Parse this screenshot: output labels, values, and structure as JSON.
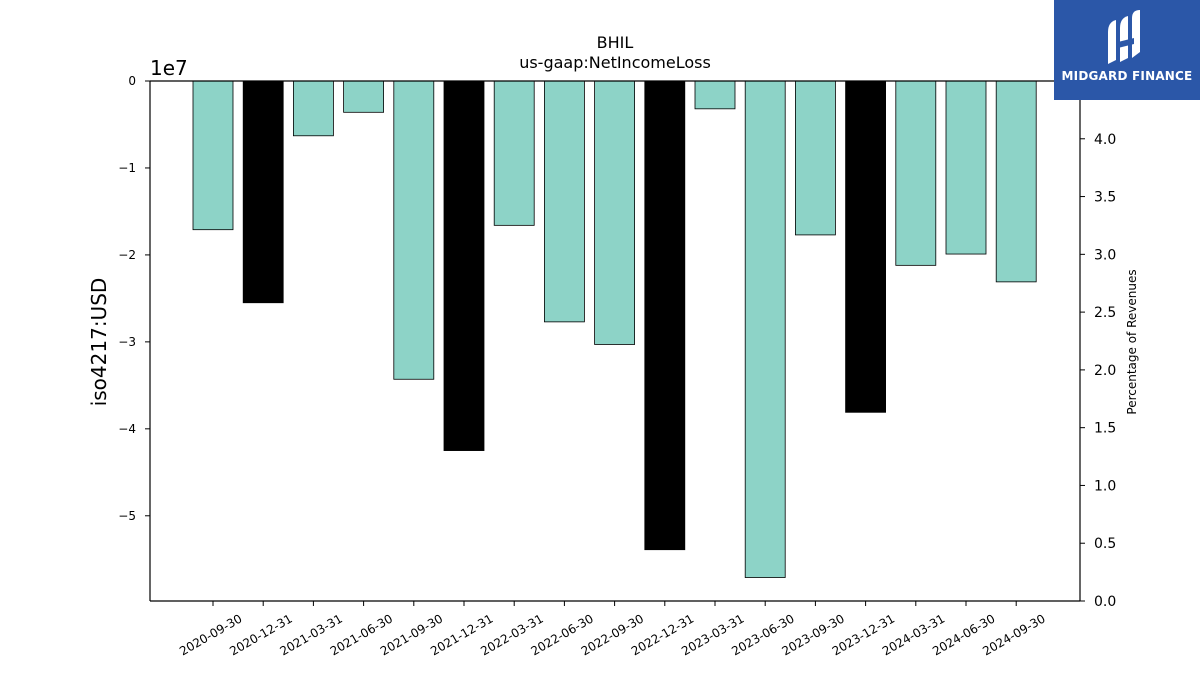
{
  "chart_data": {
    "type": "bar",
    "title": "BHIL",
    "subtitle": "us-gaap:NetIncomeLoss",
    "ylabel": "iso4217:USD",
    "y_offset_text": "1e7",
    "y2label": "Percentage of Revenues",
    "ylim": [
      -59800000,
      0
    ],
    "y2lim": [
      0.0,
      4.5
    ],
    "y_ticks": [
      0,
      -10000000,
      -20000000,
      -30000000,
      -40000000,
      -50000000
    ],
    "y_tick_labels": [
      "0",
      "−1",
      "−2",
      "−3",
      "−4",
      "−5"
    ],
    "y2_ticks": [
      0.0,
      0.5,
      1.0,
      1.5,
      2.0,
      2.5,
      3.0,
      3.5,
      4.0
    ],
    "y2_tick_labels": [
      "0.0",
      "0.5",
      "1.0",
      "1.5",
      "2.0",
      "2.5",
      "3.0",
      "3.5",
      "4.0"
    ],
    "categories": [
      "2020-09-30",
      "2020-12-31",
      "2021-03-31",
      "2021-06-30",
      "2021-09-30",
      "2021-12-31",
      "2022-03-31",
      "2022-06-30",
      "2022-09-30",
      "2022-12-31",
      "2023-03-31",
      "2023-06-30",
      "2023-09-30",
      "2023-12-31",
      "2024-03-31",
      "2024-06-30",
      "2024-09-30"
    ],
    "values": [
      -17100000,
      -25500000,
      -6300000,
      -3600000,
      -34300000,
      -42500000,
      -16600000,
      -27700000,
      -30300000,
      -53900000,
      -3200000,
      -57100000,
      -17700000,
      -38100000,
      -21200000,
      -19900000,
      -23100000
    ],
    "bar_colors": [
      "#8dd3c7",
      "#000000",
      "#8dd3c7",
      "#8dd3c7",
      "#8dd3c7",
      "#000000",
      "#8dd3c7",
      "#8dd3c7",
      "#8dd3c7",
      "#000000",
      "#8dd3c7",
      "#8dd3c7",
      "#8dd3c7",
      "#000000",
      "#8dd3c7",
      "#8dd3c7",
      "#8dd3c7"
    ],
    "grid": false
  },
  "logo": {
    "text": "MIDGARD FINANCE",
    "background": "#2b57a8",
    "icon": "midgard-logo-icon"
  }
}
